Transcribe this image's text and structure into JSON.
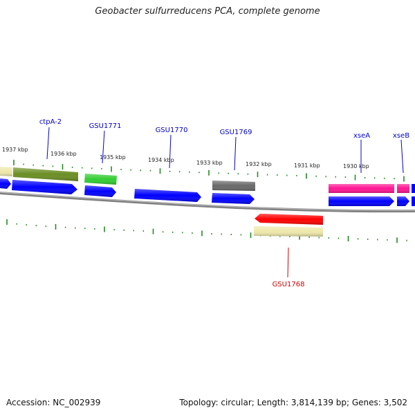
{
  "title": "Geobacter sulfurreducens PCA, complete genome",
  "footer": {
    "accession": "Accession: NC_002939",
    "summary": "Topology: circular; Length: 3,814,139 bp; Genes: 3,502"
  },
  "colors": {
    "backbone": "#808080",
    "tick": "#228B22",
    "blue": "#0000FF",
    "label_blue": "#0000CC",
    "label_red": "#CC0000"
  },
  "kbp_labels": [
    "1937 kbp",
    "1936 kbp",
    "1935 kbp",
    "1934 kbp",
    "1933 kbp",
    "1932 kbp",
    "1931 kbp",
    "1930 kbp"
  ],
  "gene_labels": [
    {
      "name": "ctpA-2",
      "color": "#0000CC"
    },
    {
      "name": "GSU1771",
      "color": "#0000CC"
    },
    {
      "name": "GSU1770",
      "color": "#0000CC"
    },
    {
      "name": "GSU1769",
      "color": "#0000CC"
    },
    {
      "name": "xseA",
      "color": "#0000CC"
    },
    {
      "name": "xseB",
      "color": "#0000CC"
    },
    {
      "name": "GSU1768",
      "color": "#CC0000"
    }
  ],
  "features": [
    {
      "id": "partial-left-yellow",
      "color": "#EEE8AA",
      "icon": "gene-block"
    },
    {
      "id": "ctpA-2",
      "color": "#6B8E23",
      "icon": "gene-block"
    },
    {
      "id": "GSU1771",
      "color": "#32CD32",
      "icon": "gene-block"
    },
    {
      "id": "GSU1769",
      "color": "#696969",
      "icon": "gene-block"
    },
    {
      "id": "GSU1768",
      "color": "#FF0000",
      "icon": "gene-block"
    },
    {
      "id": "GSU1768-cog",
      "color": "#EEE8AA",
      "icon": "gene-block"
    },
    {
      "id": "xseA",
      "color": "#FF1493",
      "icon": "gene-block"
    },
    {
      "id": "xseB",
      "color": "#FF1493",
      "icon": "gene-block"
    }
  ]
}
